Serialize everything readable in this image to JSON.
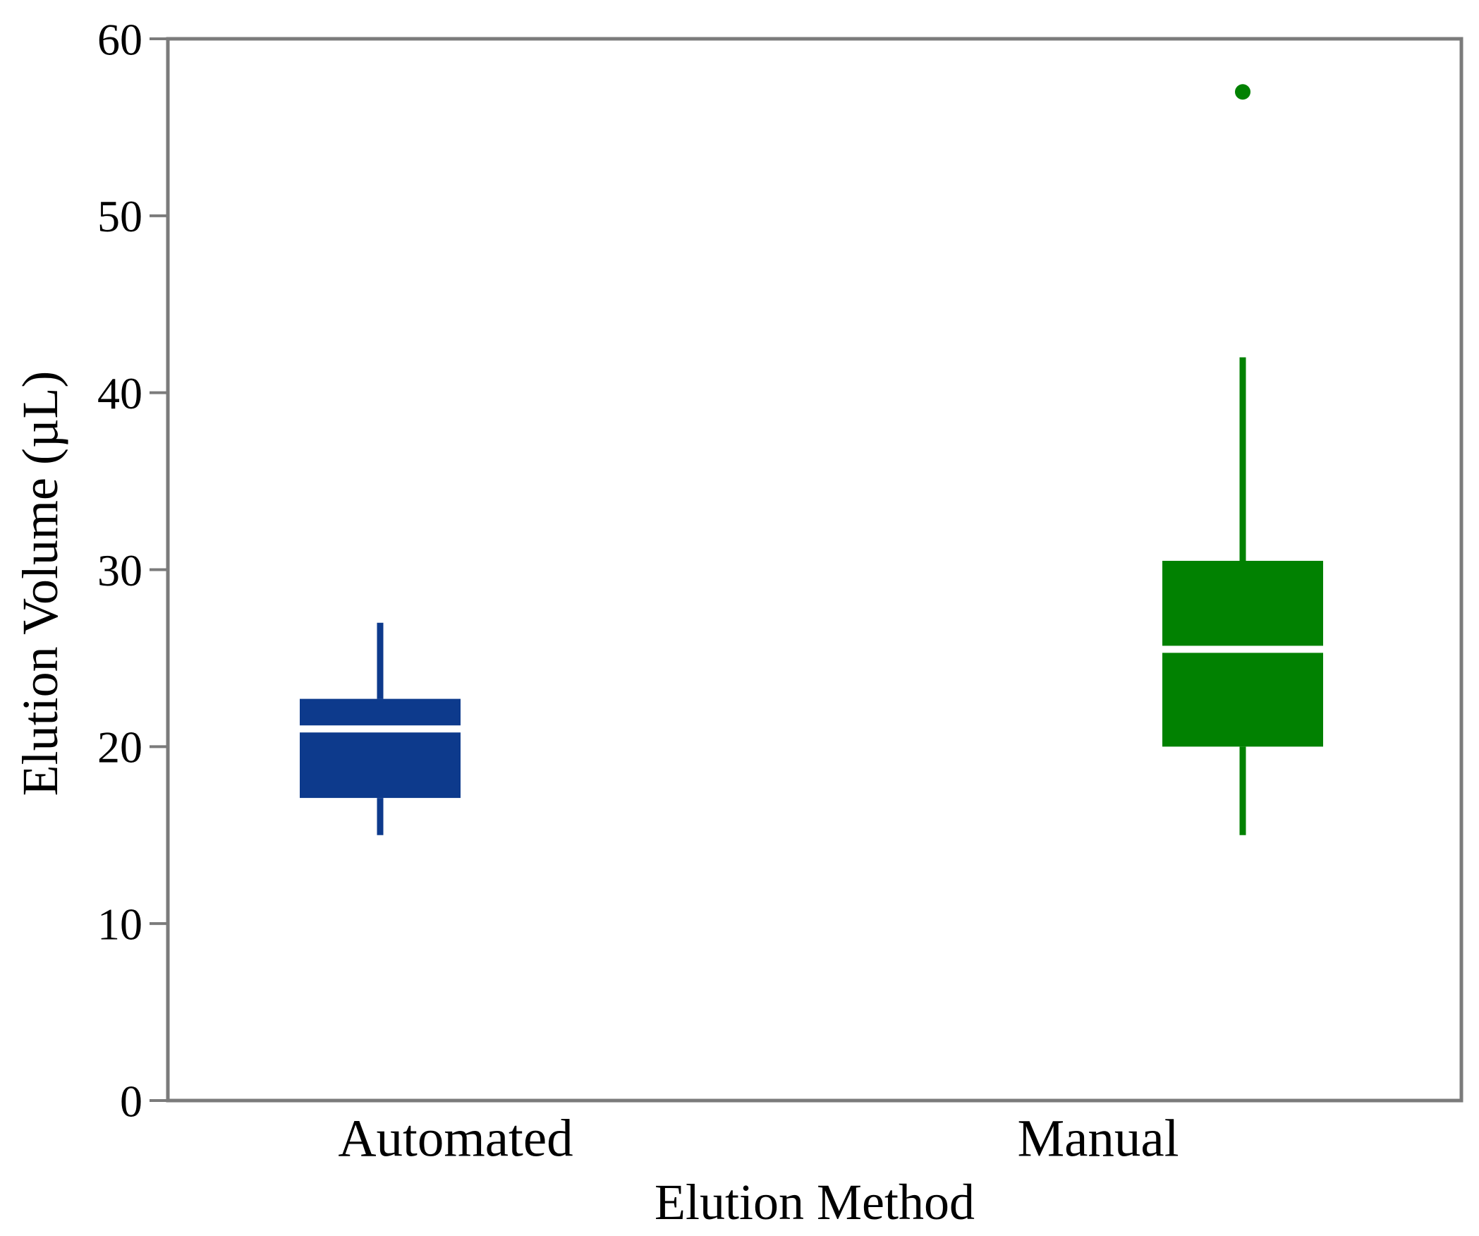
{
  "chart_data": {
    "type": "boxplot",
    "title": "",
    "xlabel": "Elution Method",
    "ylabel": "Elution Volume (µL)",
    "ylim": [
      0,
      60
    ],
    "yticks": [
      0,
      10,
      20,
      30,
      40,
      50,
      60
    ],
    "grid": "off",
    "legend": "none",
    "categories": [
      "Automated",
      "Manual"
    ],
    "series": [
      {
        "name": "Automated",
        "color": "#0d3a8c",
        "whisker_low": 15,
        "q1": 17.1,
        "median": 21,
        "q3": 22.7,
        "whisker_high": 27,
        "outliers": []
      },
      {
        "name": "Manual",
        "color": "#018101",
        "whisker_low": 15,
        "q1": 20,
        "median": 25.5,
        "q3": 30.5,
        "whisker_high": 42,
        "outliers": [
          57
        ]
      }
    ],
    "style": {
      "axis_color": "#7b7b7b",
      "text_color": "#000000",
      "median_line_color": "#ffffff",
      "background": "#ffffff"
    }
  }
}
